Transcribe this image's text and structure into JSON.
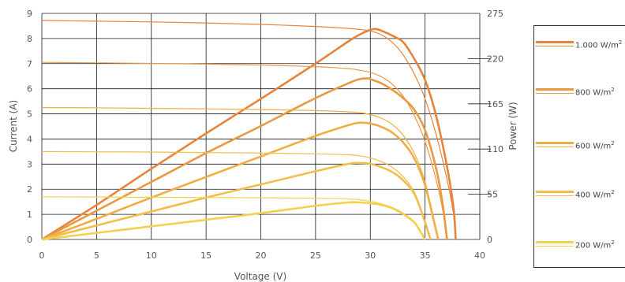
{
  "chart_data": {
    "type": "line",
    "xlabel": "Voltage (V)",
    "ylabel_left": "Current (A)",
    "ylabel_right": "Power (W)",
    "xlim": [
      0,
      40
    ],
    "ylim_left": [
      0,
      9
    ],
    "ylim_right": [
      0,
      275
    ],
    "x_ticks": [
      "0",
      "5",
      "10",
      "15",
      "20",
      "25",
      "30",
      "35",
      "40"
    ],
    "y_left_ticks": [
      "0",
      "1",
      "2",
      "3",
      "4",
      "5",
      "6",
      "7",
      "8",
      "9"
    ],
    "y_right_ticks": [
      "0",
      "55",
      "110",
      "165",
      "220",
      "275"
    ],
    "grid": true,
    "legend_position": "right",
    "unit_suffix": "2",
    "series": [
      {
        "irradiance": 1000,
        "name": "1.000 W/m",
        "color": "#e8833a",
        "current": [
          [
            0,
            8.72
          ],
          [
            5,
            8.69
          ],
          [
            10,
            8.66
          ],
          [
            15,
            8.62
          ],
          [
            20,
            8.56
          ],
          [
            25,
            8.48
          ],
          [
            28,
            8.4
          ],
          [
            29,
            8.36
          ],
          [
            30,
            8.3
          ],
          [
            31,
            8.15
          ],
          [
            32,
            7.85
          ],
          [
            33,
            7.35
          ],
          [
            34,
            6.6
          ],
          [
            35,
            5.6
          ],
          [
            36,
            4.2
          ],
          [
            37,
            2.4
          ],
          [
            37.6,
            1.0
          ],
          [
            37.8,
            0
          ]
        ],
        "power": [
          [
            0,
            0
          ],
          [
            5,
            42
          ],
          [
            10,
            86
          ],
          [
            15,
            129
          ],
          [
            20,
            171
          ],
          [
            25,
            214
          ],
          [
            28,
            241
          ],
          [
            29,
            249
          ],
          [
            30,
            255
          ],
          [
            30.5,
            256
          ],
          [
            31,
            254
          ],
          [
            32,
            248
          ],
          [
            33,
            240
          ],
          [
            34,
            220
          ],
          [
            35,
            194
          ],
          [
            36,
            151
          ],
          [
            37,
            89
          ],
          [
            37.6,
            38
          ],
          [
            37.8,
            0
          ]
        ]
      },
      {
        "irradiance": 800,
        "name": "800 W/m",
        "color": "#eb9842",
        "current": [
          [
            0,
            7.05
          ],
          [
            5,
            7.03
          ],
          [
            10,
            7.01
          ],
          [
            15,
            6.98
          ],
          [
            20,
            6.94
          ],
          [
            25,
            6.88
          ],
          [
            28,
            6.8
          ],
          [
            29,
            6.74
          ],
          [
            30,
            6.65
          ],
          [
            31,
            6.48
          ],
          [
            32,
            6.18
          ],
          [
            33,
            5.7
          ],
          [
            34,
            4.95
          ],
          [
            35,
            3.9
          ],
          [
            36,
            2.4
          ],
          [
            36.6,
            1.2
          ],
          [
            37,
            0
          ]
        ],
        "power": [
          [
            0,
            0
          ],
          [
            5,
            35
          ],
          [
            10,
            70
          ],
          [
            15,
            105
          ],
          [
            20,
            138
          ],
          [
            25,
            172
          ],
          [
            28,
            190
          ],
          [
            29,
            195
          ],
          [
            29.8,
            196
          ],
          [
            30,
            195
          ],
          [
            31,
            190
          ],
          [
            32,
            182
          ],
          [
            33,
            172
          ],
          [
            34,
            158
          ],
          [
            35,
            133
          ],
          [
            36,
            87
          ],
          [
            36.6,
            44
          ],
          [
            37,
            0
          ]
        ]
      },
      {
        "irradiance": 600,
        "name": "600 W/m",
        "color": "#efad45",
        "current": [
          [
            0,
            5.25
          ],
          [
            5,
            5.24
          ],
          [
            10,
            5.22
          ],
          [
            15,
            5.2
          ],
          [
            20,
            5.17
          ],
          [
            25,
            5.13
          ],
          [
            28,
            5.08
          ],
          [
            29,
            5.05
          ],
          [
            30,
            4.97
          ],
          [
            31,
            4.83
          ],
          [
            32,
            4.58
          ],
          [
            33,
            4.15
          ],
          [
            34,
            3.45
          ],
          [
            35,
            2.3
          ],
          [
            35.8,
            0.8
          ],
          [
            36.2,
            0
          ]
        ],
        "power": [
          [
            0,
            0
          ],
          [
            5,
            25
          ],
          [
            10,
            51
          ],
          [
            15,
            76
          ],
          [
            20,
            101
          ],
          [
            25,
            126
          ],
          [
            28,
            139
          ],
          [
            29,
            142
          ],
          [
            30,
            141
          ],
          [
            31,
            137
          ],
          [
            32,
            130
          ],
          [
            33,
            118
          ],
          [
            34,
            99
          ],
          [
            35,
            66
          ],
          [
            35.8,
            23
          ],
          [
            36.2,
            0
          ]
        ]
      },
      {
        "irradiance": 400,
        "name": "400 W/m",
        "color": "#f2bd4b",
        "current": [
          [
            0,
            3.5
          ],
          [
            5,
            3.49
          ],
          [
            10,
            3.48
          ],
          [
            15,
            3.46
          ],
          [
            20,
            3.44
          ],
          [
            25,
            3.41
          ],
          [
            28,
            3.37
          ],
          [
            29,
            3.33
          ],
          [
            30,
            3.25
          ],
          [
            31,
            3.1
          ],
          [
            32,
            2.88
          ],
          [
            33,
            2.5
          ],
          [
            34,
            1.9
          ],
          [
            34.8,
            1.0
          ],
          [
            35.5,
            0
          ]
        ],
        "power": [
          [
            0,
            0
          ],
          [
            5,
            17
          ],
          [
            10,
            34
          ],
          [
            15,
            51
          ],
          [
            20,
            67
          ],
          [
            25,
            83
          ],
          [
            28,
            92
          ],
          [
            29,
            93
          ],
          [
            30,
            92
          ],
          [
            31,
            88
          ],
          [
            32,
            82
          ],
          [
            33,
            72
          ],
          [
            34,
            56
          ],
          [
            34.8,
            29
          ],
          [
            35.5,
            0
          ]
        ]
      },
      {
        "irradiance": 200,
        "name": "200 W/m",
        "color": "#f5d050",
        "current": [
          [
            0,
            1.7
          ],
          [
            5,
            1.69
          ],
          [
            10,
            1.68
          ],
          [
            15,
            1.67
          ],
          [
            20,
            1.66
          ],
          [
            25,
            1.64
          ],
          [
            28,
            1.61
          ],
          [
            29,
            1.58
          ],
          [
            30,
            1.52
          ],
          [
            31,
            1.42
          ],
          [
            32,
            1.28
          ],
          [
            33,
            1.05
          ],
          [
            34,
            0.7
          ],
          [
            34.6,
            0.3
          ],
          [
            35,
            0
          ]
        ],
        "power": [
          [
            0,
            0
          ],
          [
            5,
            8
          ],
          [
            10,
            16
          ],
          [
            15,
            24
          ],
          [
            20,
            32
          ],
          [
            25,
            41
          ],
          [
            28,
            45
          ],
          [
            29,
            45
          ],
          [
            30,
            44
          ],
          [
            31,
            42
          ],
          [
            32,
            38
          ],
          [
            33,
            31
          ],
          [
            34,
            21
          ],
          [
            34.6,
            9
          ],
          [
            35,
            0
          ]
        ]
      }
    ]
  }
}
